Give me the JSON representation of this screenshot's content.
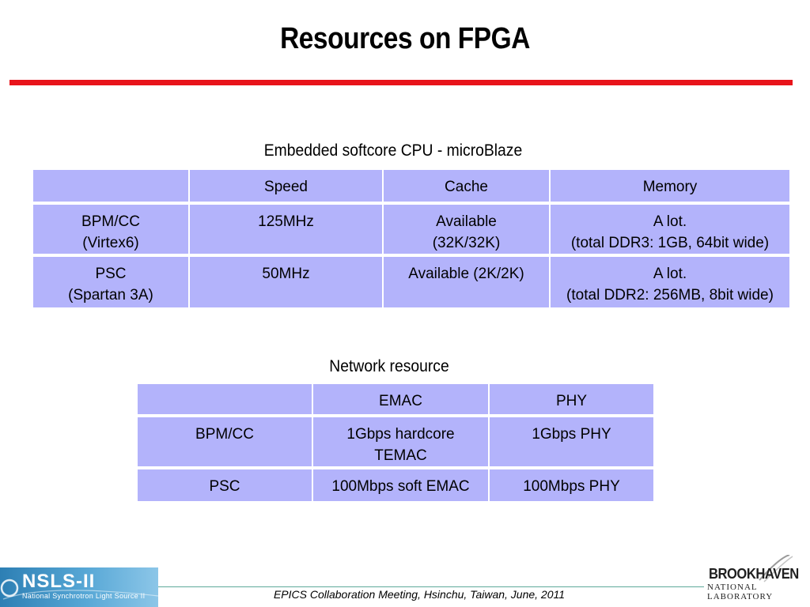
{
  "title": "Resources on FPGA",
  "cpu_section": {
    "caption": "Embedded softcore CPU - microBlaze",
    "headers": [
      "",
      "Speed",
      "Cache",
      "Memory"
    ],
    "rows": [
      [
        [
          "BPM/CC",
          "(Virtex6)"
        ],
        [
          "125MHz"
        ],
        [
          "Available",
          "(32K/32K)"
        ],
        [
          "A lot.",
          "(total DDR3: 1GB, 64bit wide)"
        ]
      ],
      [
        [
          "PSC",
          "(Spartan 3A)"
        ],
        [
          "50MHz"
        ],
        [
          "Available (2K/2K)"
        ],
        [
          "A lot.",
          "(total DDR2: 256MB, 8bit wide)"
        ]
      ]
    ]
  },
  "network_section": {
    "caption": "Network resource",
    "headers": [
      "",
      "EMAC",
      "PHY"
    ],
    "rows": [
      [
        [
          "BPM/CC"
        ],
        [
          "1Gbps hardcore",
          "TEMAC"
        ],
        [
          "1Gbps PHY"
        ]
      ],
      [
        [
          "PSC"
        ],
        [
          "100Mbps soft EMAC"
        ],
        [
          "100Mbps PHY"
        ]
      ]
    ]
  },
  "footer": {
    "text": "EPICS Collaboration Meeting, Hsinchu, Taiwan, June, 2011",
    "left_logo": {
      "name": "NSLS-II",
      "subtitle": "National Synchrotron Light Source II"
    },
    "right_logo": {
      "name": "BROOKHAVEN",
      "subtitle": "NATIONAL LABORATORY"
    }
  },
  "colors": {
    "accent_rule": "#e8141b",
    "table_cell": "#b3b3fb",
    "footer_rule": "#5ea99b"
  }
}
